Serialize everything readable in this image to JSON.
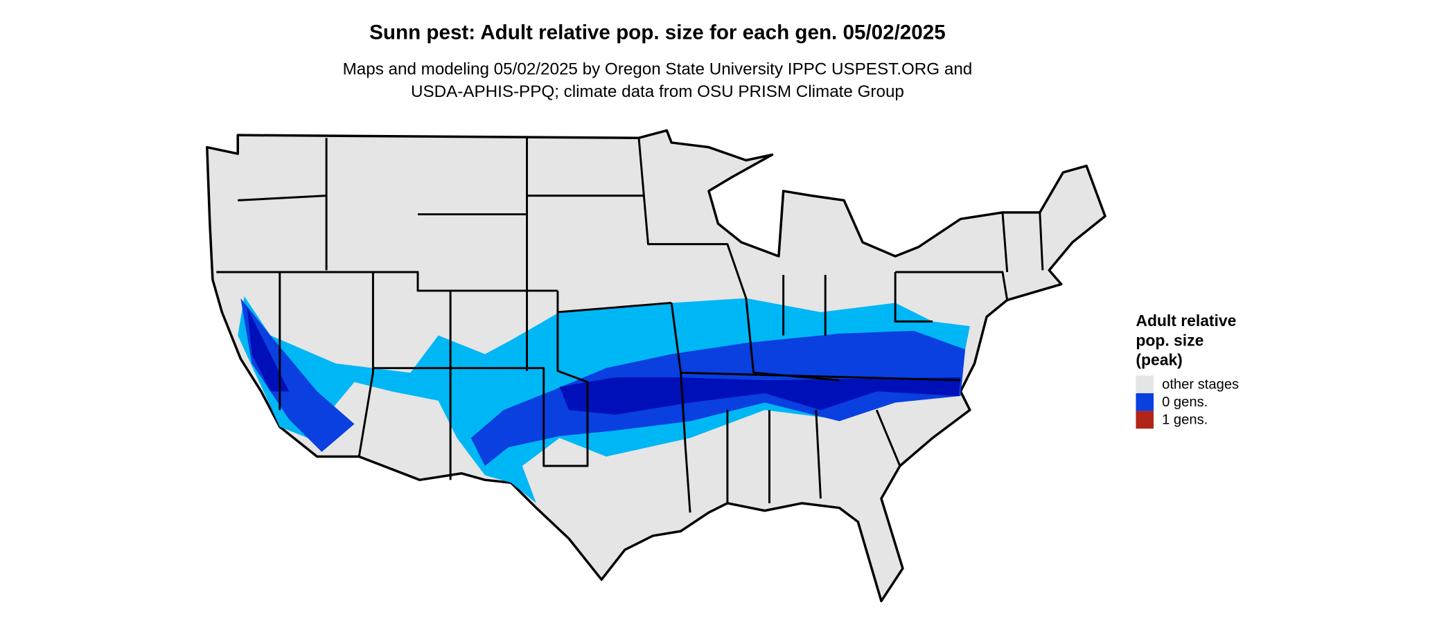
{
  "title": "Sunn pest: Adult relative pop. size for each gen. 05/02/2025",
  "subtitle": [
    "Maps and modeling 05/02/2025 by Oregon State University IPPC USPEST.ORG and",
    "USDA-APHIS-PPQ; climate data from OSU PRISM Climate Group"
  ],
  "legend": {
    "title": [
      "Adult relative",
      "pop. size",
      "(peak)"
    ],
    "entries": [
      {
        "label": "other stages",
        "color": "#e5e5e5"
      },
      {
        "label": "0 gens.",
        "color": "#0a3fe0"
      },
      {
        "label": "1 gens.",
        "color": "#b22418"
      }
    ]
  }
}
